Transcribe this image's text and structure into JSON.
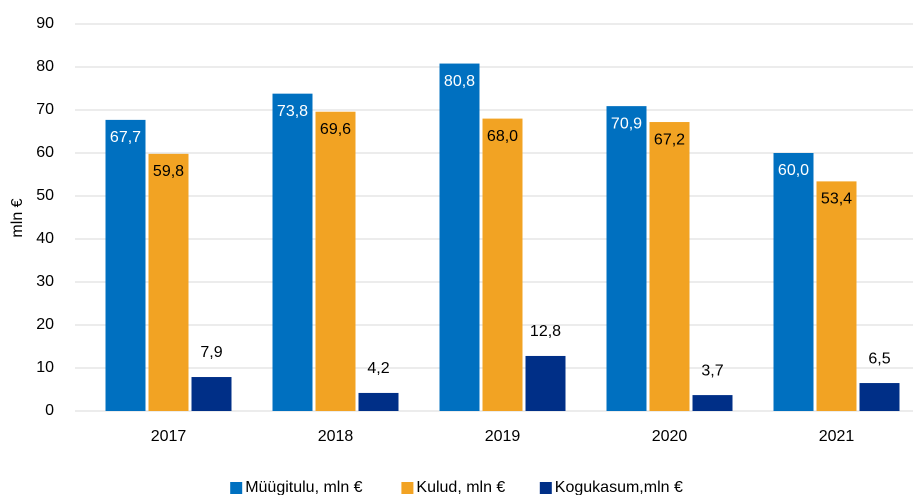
{
  "chart_data": {
    "type": "bar",
    "categories": [
      "2017",
      "2018",
      "2019",
      "2020",
      "2021"
    ],
    "y_label": "mln €",
    "series": [
      {
        "name": "Müügitulu, mln €",
        "color": "#0070c0",
        "values": [
          67.7,
          73.8,
          80.8,
          70.9,
          60.0
        ],
        "value_labels": [
          "67,7",
          "73,8",
          "80,8",
          "70,9",
          "60,0"
        ]
      },
      {
        "name": "Kulud, mln €",
        "color": "#f2a323",
        "values": [
          59.8,
          69.6,
          68.0,
          67.2,
          53.4
        ],
        "value_labels": [
          "59,8",
          "69,6",
          "68,0",
          "67,2",
          "53,4"
        ]
      },
      {
        "name": "Kogukasum,mln €",
        "color": "#002f87",
        "values": [
          7.9,
          4.2,
          12.8,
          3.7,
          6.5
        ],
        "value_labels": [
          "7,9",
          "4,2",
          "12,8",
          "3,7",
          "6,5"
        ]
      }
    ],
    "ylim": [
      0,
      90
    ],
    "yticks": [
      0,
      10,
      20,
      30,
      40,
      50,
      60,
      70,
      80,
      90
    ],
    "grid": true,
    "legend": "bottom"
  }
}
